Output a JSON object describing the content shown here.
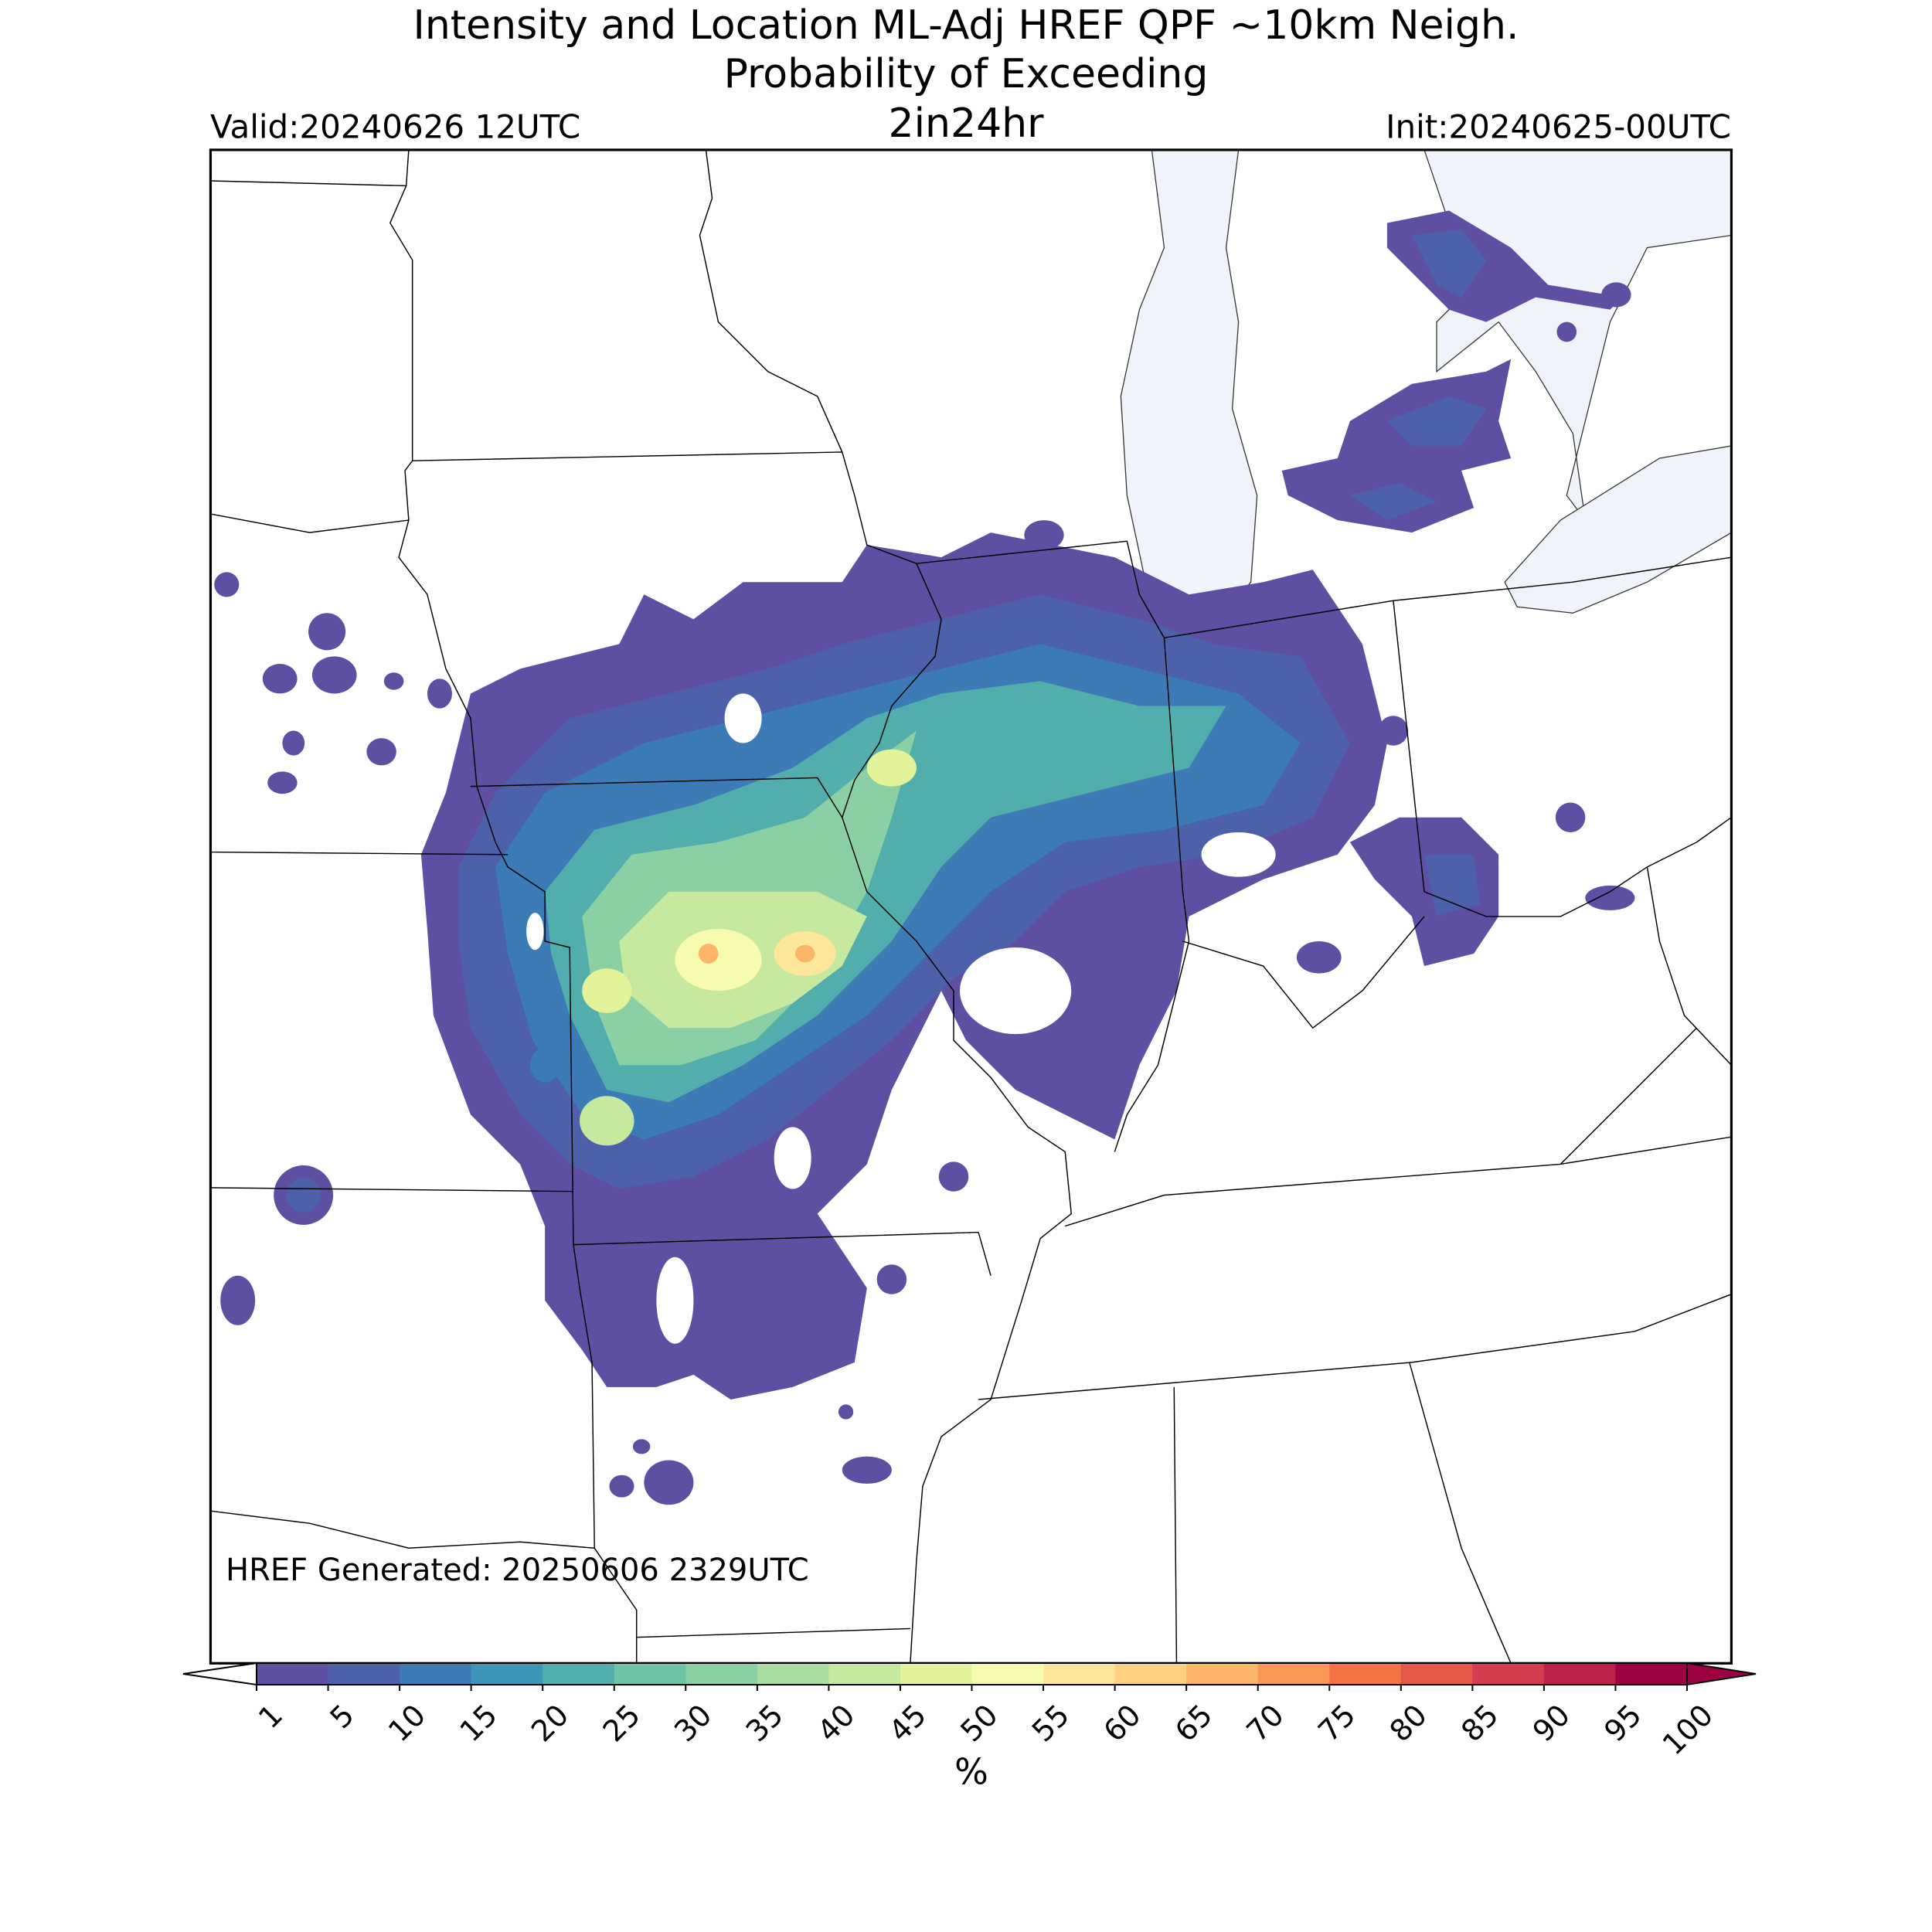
{
  "header": {
    "title_lines": [
      "Intensity and Location ML-Adj HREF QPF ~10km Neigh.",
      "Probability of Exceeding",
      "2in24hr"
    ],
    "valid": "Valid:20240626 12UTC",
    "init": "Init:20240625-00UTC"
  },
  "map": {
    "footer": "HREF Generated: 20250606 2329UTC"
  },
  "colorbar": {
    "ticks": [
      1,
      5,
      10,
      15,
      20,
      25,
      30,
      35,
      40,
      45,
      50,
      55,
      60,
      65,
      70,
      75,
      80,
      85,
      90,
      95,
      100
    ],
    "colors": [
      "#5e4fa2",
      "#4c61aa",
      "#3c7bb6",
      "#3d95b8",
      "#51aead",
      "#6cc4a4",
      "#8ad0a4",
      "#a9dda2",
      "#c6e89f",
      "#e2f39a",
      "#f6fbb0",
      "#fee79a",
      "#fed081",
      "#fdb567",
      "#fa9656",
      "#f47346",
      "#e65848",
      "#d43d4f",
      "#bb2149",
      "#9e0142"
    ],
    "under_color": "#ffffff",
    "over_color": "#9e0142",
    "label": "%"
  }
}
